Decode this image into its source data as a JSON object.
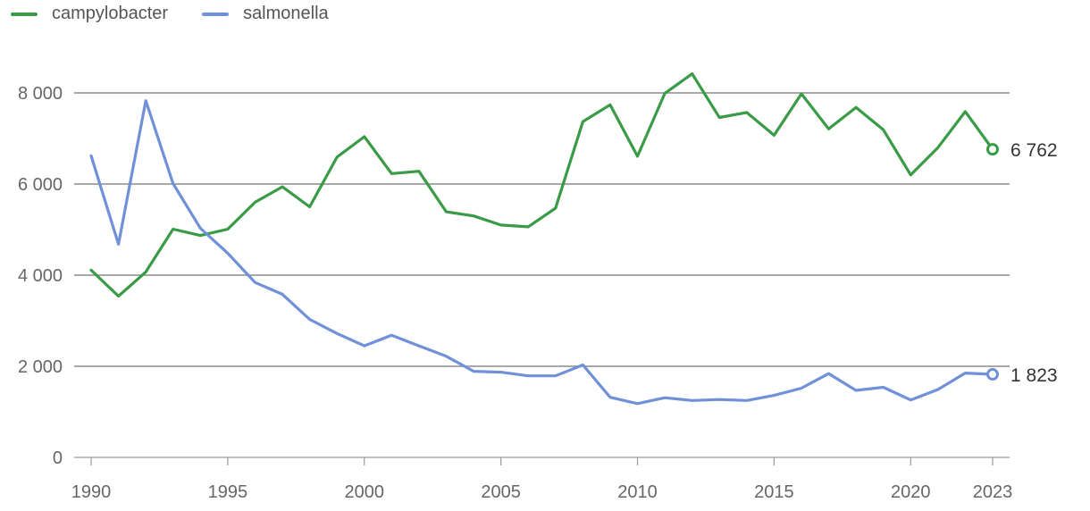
{
  "chart_data": {
    "type": "line",
    "title": "",
    "xlabel": "",
    "ylabel": "",
    "xlim": [
      1990,
      2023
    ],
    "ylim": [
      0,
      8000
    ],
    "y_ticks": [
      0,
      2000,
      4000,
      6000,
      8000
    ],
    "y_tick_labels": [
      "0",
      "2 000",
      "4 000",
      "6 000",
      "8 000"
    ],
    "x_ticks": [
      1990,
      1995,
      2000,
      2005,
      2010,
      2015,
      2020,
      2023
    ],
    "x_tick_labels": [
      "1990",
      "1995",
      "2000",
      "2005",
      "2010",
      "2015",
      "2020",
      "2023"
    ],
    "grid": true,
    "legend": "top-left",
    "x": [
      1990,
      1991,
      1992,
      1993,
      1994,
      1995,
      1996,
      1997,
      1998,
      1999,
      2000,
      2001,
      2002,
      2003,
      2004,
      2005,
      2006,
      2007,
      2008,
      2009,
      2010,
      2011,
      2012,
      2013,
      2014,
      2015,
      2016,
      2017,
      2018,
      2019,
      2020,
      2021,
      2022,
      2023
    ],
    "series": [
      {
        "name": "campylobacter",
        "color": "#3a9b47",
        "values": [
          4110,
          3540,
          4070,
          5010,
          4870,
          5010,
          5600,
          5940,
          5500,
          6590,
          7040,
          6230,
          6280,
          5390,
          5300,
          5100,
          5060,
          5470,
          7370,
          7740,
          6610,
          7990,
          8420,
          7460,
          7570,
          7070,
          7980,
          7210,
          7680,
          7190,
          6200,
          6800,
          7590,
          6762
        ],
        "end_label": "6 762"
      },
      {
        "name": "salmonella",
        "color": "#7090d8",
        "values": [
          6620,
          4680,
          7830,
          6010,
          5030,
          4480,
          3840,
          3580,
          3030,
          2720,
          2450,
          2680,
          2450,
          2220,
          1890,
          1870,
          1790,
          1790,
          2030,
          1320,
          1180,
          1310,
          1250,
          1270,
          1250,
          1360,
          1520,
          1840,
          1470,
          1540,
          1260,
          1490,
          1850,
          1823
        ],
        "end_label": "1 823"
      }
    ]
  }
}
